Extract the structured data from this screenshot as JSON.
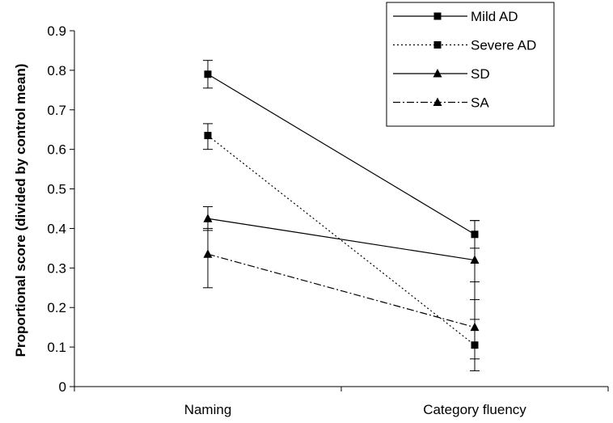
{
  "chart_data": {
    "type": "line",
    "categories": [
      "Naming",
      "Category fluency"
    ],
    "ylabel": "Proportional score (divided by control mean)",
    "ylim": [
      0,
      0.9
    ],
    "yticks": [
      "0",
      "0.1",
      "0.2",
      "0.3",
      "0.4",
      "0.5",
      "0.6",
      "0.7",
      "0.8",
      "0.9"
    ],
    "legend_position": "top-right",
    "grid": false,
    "series": [
      {
        "name": "Mild AD",
        "marker": "square",
        "dash": "solid",
        "values": [
          0.79,
          0.385
        ],
        "error_low": [
          0.755,
          0.35
        ],
        "error_high": [
          0.825,
          0.42
        ]
      },
      {
        "name": "Severe AD",
        "marker": "square",
        "dash": "dotted",
        "values": [
          0.635,
          0.105
        ],
        "error_low": [
          0.6,
          0.04
        ],
        "error_high": [
          0.665,
          0.17
        ]
      },
      {
        "name": "SD",
        "marker": "triangle",
        "dash": "solid",
        "values": [
          0.425,
          0.32
        ],
        "error_low": [
          0.395,
          0.22
        ],
        "error_high": [
          0.455,
          0.42
        ]
      },
      {
        "name": "SA",
        "marker": "triangle",
        "dash": "dashdot",
        "values": [
          0.335,
          0.15
        ],
        "error_low": [
          0.25,
          0.07
        ],
        "error_high": [
          0.4,
          0.265
        ]
      }
    ]
  }
}
